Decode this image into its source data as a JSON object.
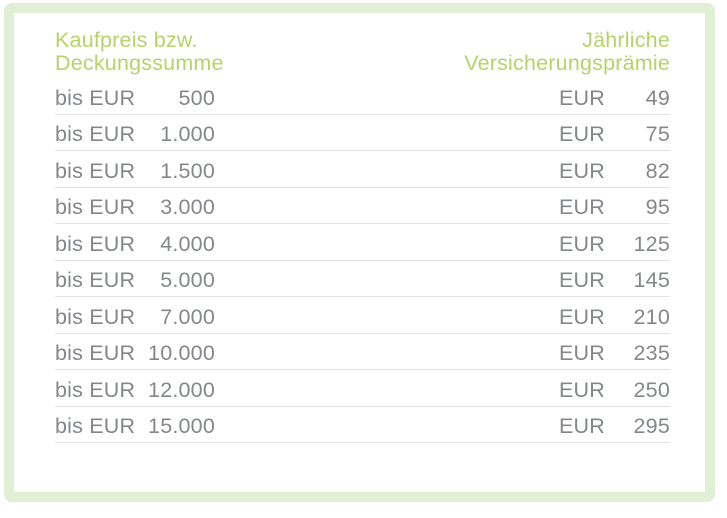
{
  "colors": {
    "frame_green": "#e1efd5",
    "accent_green": "#b5d369",
    "text_gray": "#84878b",
    "divider_gray": "#e4e4e7"
  },
  "header": {
    "left": {
      "line1": "Kaufpreis bzw.",
      "line2": "Deckungssumme"
    },
    "right": {
      "line1": "Jährliche",
      "line2": "Versicherungsprämie"
    }
  },
  "rows": [
    {
      "prefix": "bis EUR",
      "amount": "500",
      "currency": "EUR",
      "premium": "49"
    },
    {
      "prefix": "bis EUR",
      "amount": "1.000",
      "currency": "EUR",
      "premium": "75"
    },
    {
      "prefix": "bis EUR",
      "amount": "1.500",
      "currency": "EUR",
      "premium": "82"
    },
    {
      "prefix": "bis EUR",
      "amount": "3.000",
      "currency": "EUR",
      "premium": "95"
    },
    {
      "prefix": "bis EUR",
      "amount": "4.000",
      "currency": "EUR",
      "premium": "125"
    },
    {
      "prefix": "bis EUR",
      "amount": "5.000",
      "currency": "EUR",
      "premium": "145"
    },
    {
      "prefix": "bis EUR",
      "amount": "7.000",
      "currency": "EUR",
      "premium": "210"
    },
    {
      "prefix": "bis EUR",
      "amount": "10.000",
      "currency": "EUR",
      "premium": "235"
    },
    {
      "prefix": "bis EUR",
      "amount": "12.000",
      "currency": "EUR",
      "premium": "250"
    },
    {
      "prefix": "bis EUR",
      "amount": "15.000",
      "currency": "EUR",
      "premium": "295"
    }
  ]
}
